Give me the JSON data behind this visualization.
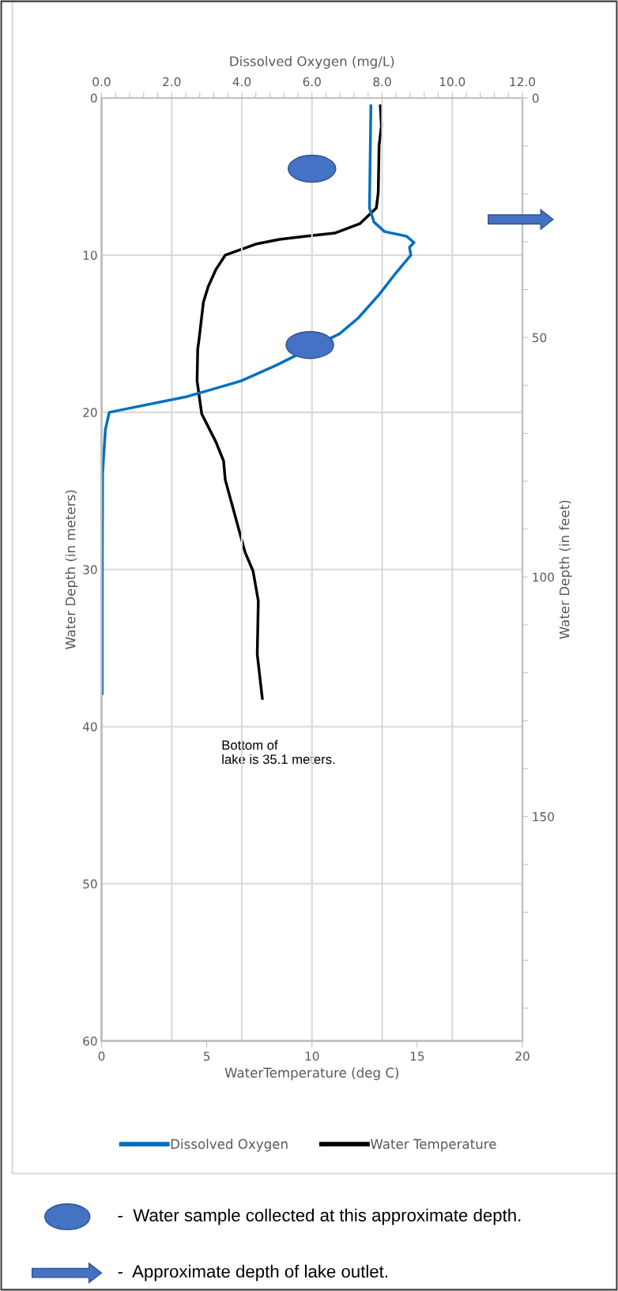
{
  "chart_data": {
    "type": "line",
    "xlabel": "WaterTemperature (deg C)",
    "x2label": "Dissolved Oxygen (mg/L)",
    "ylabel": "Water Depth (in meters)",
    "y2label": "Water Depth (in feet)",
    "xlim": [
      0,
      20
    ],
    "xticks": [
      0,
      5,
      10,
      15,
      20
    ],
    "x2lim": [
      0,
      12
    ],
    "x2ticks": [
      {
        "value": 0,
        "label": "0.0"
      },
      {
        "value": 0.4,
        "label": null
      },
      {
        "value": 0.8,
        "label": null
      },
      {
        "value": 1.2,
        "label": null
      },
      {
        "value": 1.6,
        "label": null
      },
      {
        "value": 2,
        "label": "2.0"
      },
      {
        "value": 2.4,
        "label": null
      },
      {
        "value": 2.8,
        "label": null
      },
      {
        "value": 3.2,
        "label": null
      },
      {
        "value": 3.6,
        "label": null
      },
      {
        "value": 4,
        "label": "4.0"
      },
      {
        "value": 4.4,
        "label": null
      },
      {
        "value": 4.8,
        "label": null
      },
      {
        "value": 5.2,
        "label": null
      },
      {
        "value": 5.6,
        "label": null
      },
      {
        "value": 6,
        "label": "6.0"
      },
      {
        "value": 6.4,
        "label": null
      },
      {
        "value": 6.8,
        "label": null
      },
      {
        "value": 7.2,
        "label": null
      },
      {
        "value": 7.6,
        "label": null
      },
      {
        "value": 8,
        "label": "8.0"
      },
      {
        "value": 8.4,
        "label": null
      },
      {
        "value": 8.8,
        "label": null
      },
      {
        "value": 9.2,
        "label": null
      },
      {
        "value": 9.6,
        "label": null
      },
      {
        "value": 10,
        "label": "10.0"
      },
      {
        "value": 10.4,
        "label": null
      },
      {
        "value": 10.8,
        "label": null
      },
      {
        "value": 11.2,
        "label": null
      },
      {
        "value": 11.6,
        "label": null
      },
      {
        "value": 12,
        "label": "12.0"
      }
    ],
    "ylim": [
      60,
      0
    ],
    "yticks": [
      0,
      10,
      20,
      30,
      40,
      50,
      60
    ],
    "y2lim": [
      196.85,
      0
    ],
    "y2ticks": [
      0,
      {
        "value": 10,
        "label": null
      },
      {
        "value": 20,
        "label": null
      },
      {
        "value": 30,
        "label": null
      },
      {
        "value": 40,
        "label": null
      },
      50,
      {
        "value": 60,
        "label": null
      },
      {
        "value": 70,
        "label": null
      },
      {
        "value": 80,
        "label": null
      },
      {
        "value": 90,
        "label": null
      },
      100,
      {
        "value": 110,
        "label": null
      },
      {
        "value": 120,
        "label": null
      },
      {
        "value": 130,
        "label": null
      },
      {
        "value": 140,
        "label": null
      },
      150,
      {
        "value": 160,
        "label": null
      },
      {
        "value": 170,
        "label": null
      },
      {
        "value": 180,
        "label": null
      },
      {
        "value": 190,
        "label": null
      }
    ],
    "grid": true,
    "legend": "bottom",
    "line_style": "solid",
    "marker": "none",
    "series": [
      {
        "name": "Dissolved Oxygen",
        "color": "#0070c0",
        "axis": "x2",
        "x": [
          7.68,
          7.64,
          7.77,
          8.07,
          8.7,
          8.91,
          8.78,
          8.82,
          8.37,
          7.92,
          7.32,
          6.79,
          4.99,
          3.98,
          2.44,
          0.22,
          0.11,
          0.03,
          0.02,
          0.02
        ],
        "values": [
          0.5,
          7.0,
          7.9,
          8.5,
          8.8,
          9.2,
          9.5,
          10.0,
          11.2,
          12.5,
          14.0,
          15.0,
          17.0,
          18.0,
          19.0,
          20.0,
          21.1,
          23.9,
          32.0,
          37.9
        ]
      },
      {
        "name": "Water Temperature",
        "color": "#000000",
        "x": [
          13.25,
          13.3,
          13.19,
          13.15,
          13.06,
          12.27,
          11.08,
          9.71,
          8.45,
          7.32,
          5.88,
          5.44,
          5.07,
          4.84,
          4.63,
          4.57,
          4.54,
          4.76,
          5.44,
          5.8,
          5.88,
          6.82,
          7.2,
          7.45,
          7.4,
          7.64
        ],
        "values": [
          0.5,
          1.8,
          3.0,
          6.0,
          7.0,
          8.0,
          8.6,
          8.8,
          9.0,
          9.3,
          10.0,
          10.9,
          12.0,
          13.0,
          15.4,
          16.0,
          18.0,
          20.1,
          21.9,
          23.1,
          24.3,
          28.9,
          30.1,
          32.0,
          35.4,
          38.2
        ]
      }
    ],
    "annotations": [
      "Bottom of\nlake is 35.1 meters.",
      "-  Water sample collected at this approximate depth.",
      "-  Approximate depth of lake outlet."
    ]
  }
}
